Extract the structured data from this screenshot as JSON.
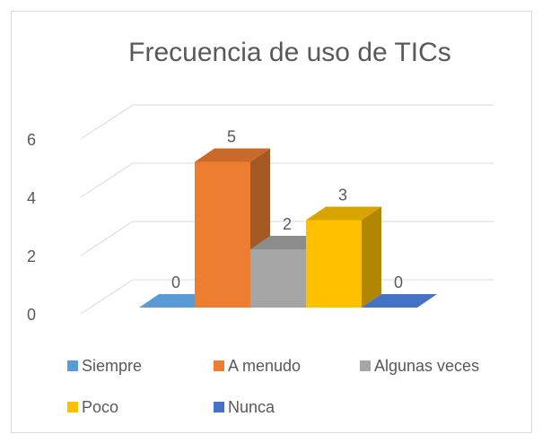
{
  "chart_data": {
    "type": "bar3d",
    "title": "Frecuencia de uso de TICs",
    "categories": [
      "Siempre",
      "A menudo",
      "Algunas veces",
      "Poco",
      "Nunca"
    ],
    "values": [
      0,
      5,
      2,
      3,
      0
    ],
    "colors": [
      "#5b9bd5",
      "#ed7d31",
      "#a5a5a5",
      "#ffc000",
      "#4472c4"
    ],
    "ylim": [
      0,
      6
    ],
    "yticks": [
      0,
      2,
      4,
      6
    ],
    "grid": true,
    "legend": "bottom"
  }
}
